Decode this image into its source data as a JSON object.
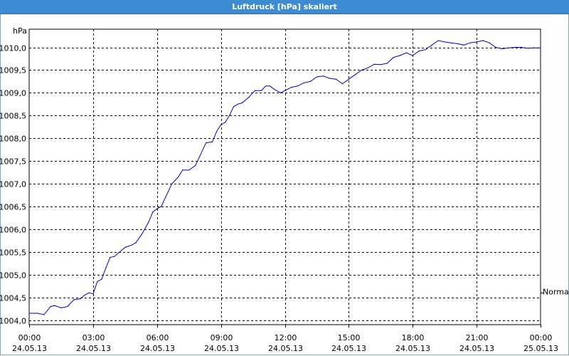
{
  "window": {
    "title": "Luftdruck [hPa] skaliert"
  },
  "chart_data": {
    "type": "line",
    "title": "Luftdruck [hPa] skaliert",
    "ylabel": "hPa",
    "xlabel": "",
    "ylim": [
      1003.9,
      1010.4
    ],
    "yticks": [
      "1004,0",
      "1004,5",
      "1005,0",
      "1005,5",
      "1006,0",
      "1006,5",
      "1007,0",
      "1007,5",
      "1008,0",
      "1008,5",
      "1009,0",
      "1009,5",
      "1010,0"
    ],
    "ytick_values": [
      1004.0,
      1004.5,
      1005.0,
      1005.5,
      1006.0,
      1006.5,
      1007.0,
      1007.5,
      1008.0,
      1008.5,
      1009.0,
      1009.5,
      1010.0
    ],
    "xticks": [
      {
        "time": "00:00",
        "date": "24.05.13"
      },
      {
        "time": "03:00",
        "date": "24.05.13"
      },
      {
        "time": "06:00",
        "date": "24.05.13"
      },
      {
        "time": "09:00",
        "date": "24.05.13"
      },
      {
        "time": "12:00",
        "date": "24.05.13"
      },
      {
        "time": "15:00",
        "date": "24.05.13"
      },
      {
        "time": "18:00",
        "date": "24.05.13"
      },
      {
        "time": "21:00",
        "date": "24.05.13"
      },
      {
        "time": "00:00",
        "date": "25.05.13"
      }
    ],
    "grid": true,
    "reference_label": "Normal",
    "reference_value": 1004.6,
    "series": [
      {
        "color": "#0000cc",
        "hours": [
          0,
          0.4,
          0.7,
          1.0,
          1.2,
          1.5,
          1.8,
          2.1,
          2.4,
          2.6,
          2.8,
          3.0,
          3.2,
          3.4,
          3.6,
          3.8,
          4.0,
          4.2,
          4.5,
          4.8,
          5.0,
          5.3,
          5.6,
          5.8,
          6.0,
          6.2,
          6.4,
          6.7,
          7.0,
          7.2,
          7.5,
          7.8,
          8.0,
          8.3,
          8.6,
          8.8,
          9.0,
          9.2,
          9.4,
          9.6,
          9.8,
          10.0,
          10.3,
          10.6,
          10.9,
          11.1,
          11.3,
          11.5,
          11.8,
          12.0,
          12.3,
          12.6,
          12.9,
          13.2,
          13.5,
          13.8,
          14.1,
          14.4,
          14.7,
          15.0,
          15.3,
          15.6,
          15.9,
          16.2,
          16.5,
          16.8,
          17.1,
          17.4,
          17.7,
          18.0,
          18.3,
          18.6,
          18.9,
          19.2,
          19.5,
          19.8,
          20.1,
          20.4,
          20.7,
          21.0,
          21.3,
          21.6,
          21.9,
          22.2,
          22.5,
          22.8,
          23.1,
          23.4,
          23.7,
          24.0
        ],
        "values": [
          1004.15,
          1004.15,
          1004.12,
          1004.3,
          1004.32,
          1004.27,
          1004.3,
          1004.45,
          1004.47,
          1004.55,
          1004.6,
          1004.58,
          1004.85,
          1004.9,
          1005.15,
          1005.38,
          1005.4,
          1005.48,
          1005.6,
          1005.65,
          1005.7,
          1005.9,
          1006.15,
          1006.38,
          1006.45,
          1006.5,
          1006.7,
          1007.0,
          1007.15,
          1007.3,
          1007.3,
          1007.4,
          1007.6,
          1007.9,
          1007.92,
          1008.15,
          1008.3,
          1008.35,
          1008.5,
          1008.7,
          1008.75,
          1008.78,
          1008.9,
          1009.05,
          1009.05,
          1009.15,
          1009.15,
          1009.08,
          1009.0,
          1009.05,
          1009.12,
          1009.15,
          1009.22,
          1009.25,
          1009.35,
          1009.37,
          1009.32,
          1009.3,
          1009.2,
          1009.3,
          1009.4,
          1009.5,
          1009.55,
          1009.63,
          1009.62,
          1009.65,
          1009.78,
          1009.82,
          1009.88,
          1009.82,
          1009.92,
          1009.95,
          1010.05,
          1010.15,
          1010.12,
          1010.1,
          1010.08,
          1010.05,
          1010.1,
          1010.12,
          1010.15,
          1010.1,
          1010.0,
          1009.97,
          1009.99,
          1010.0,
          1010.0,
          1009.98,
          1009.99,
          1009.99
        ]
      }
    ]
  }
}
